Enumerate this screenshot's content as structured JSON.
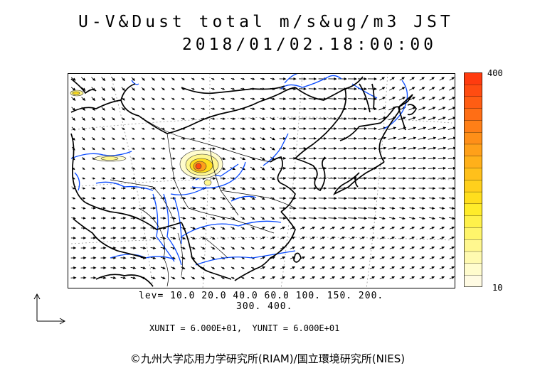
{
  "title": {
    "line1": "U-V&Dust total m/s&ug/m3 JST",
    "line2": "2018/01/02.18:00:00"
  },
  "colorbar": {
    "max_label": "400",
    "min_label": "10",
    "colors": [
      "#fffbe3",
      "#fffccd",
      "#fffab0",
      "#fff78f",
      "#fff56b",
      "#fff14a",
      "#ffec2a",
      "#ffde1d",
      "#ffd01c",
      "#ffc01b",
      "#ffb01a",
      "#ffa019",
      "#ff8f18",
      "#ff7f17",
      "#ff6e15",
      "#ff5d13",
      "#ff4c11",
      "#ff3b0f"
    ]
  },
  "levels": {
    "line1": "lev= 10.0 20.0 40.0 60.0 100. 150. 200.",
    "line2": "300. 400.",
    "values": [
      10,
      20,
      40,
      60,
      100,
      150,
      200,
      300,
      400
    ]
  },
  "units": "XUNIT = 6.000E+01,  YUNIT = 6.000E+01",
  "copyright": "©九州大学応用力学研究所(RIAM)/国立環境研究所(NIES)",
  "map": {
    "border_color": "#000000",
    "river_color": "#0a4bff",
    "grid_color": "#999999",
    "wind_arrow_color": "#000000"
  }
}
